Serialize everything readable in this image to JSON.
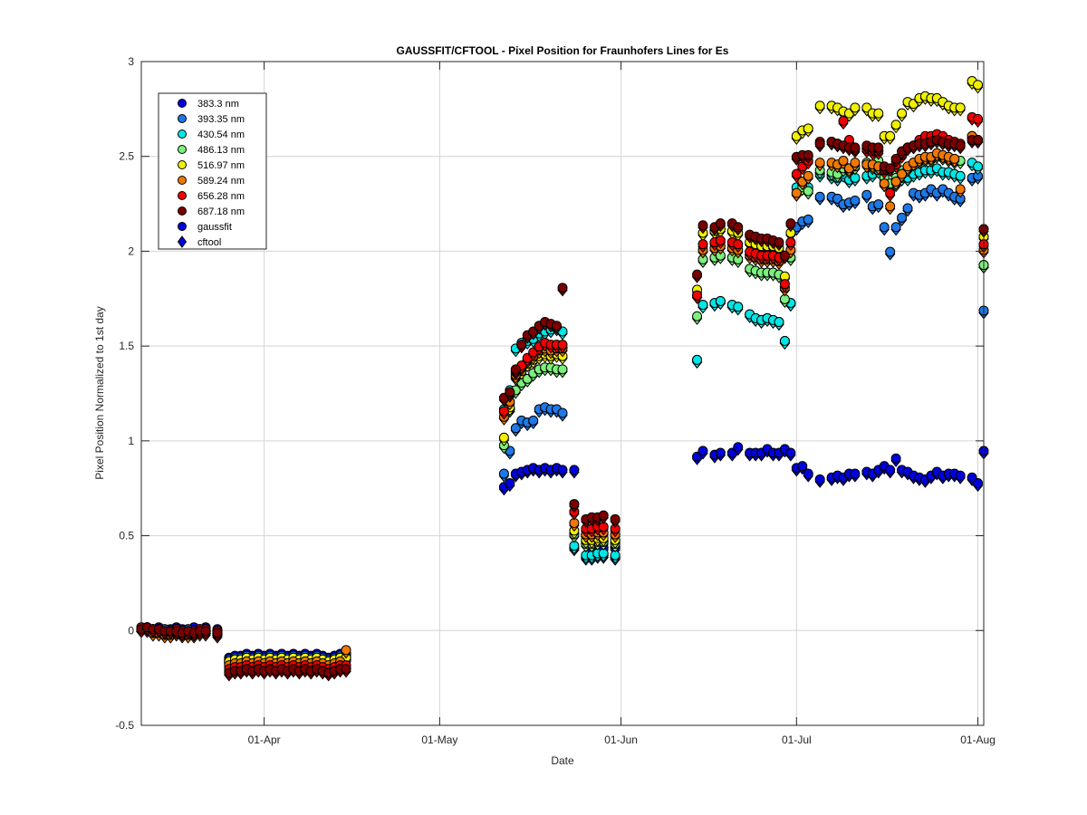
{
  "chart_data": {
    "type": "scatter",
    "title": "GAUSSFIT/CFTOOL - Pixel Position for Fraunhofers Lines for Es",
    "xlabel": "Date",
    "ylabel": "Pixel Position Normalized to 1st day",
    "xlim": [
      "2015-03-11",
      "2015-08-02"
    ],
    "ylim": [
      -0.5,
      3
    ],
    "grid": true,
    "legend_position": "top-left",
    "x_ticks": [
      {
        "date": "2015-04-01",
        "label": "01-Apr"
      },
      {
        "date": "2015-05-01",
        "label": "01-May"
      },
      {
        "date": "2015-06-01",
        "label": "01-Jun"
      },
      {
        "date": "2015-07-01",
        "label": "01-Jul"
      },
      {
        "date": "2015-08-01",
        "label": "01-Aug"
      }
    ],
    "y_ticks": [
      {
        "value": -0.5,
        "label": "-0.5"
      },
      {
        "value": 0,
        "label": "0"
      },
      {
        "value": 0.5,
        "label": "0.5"
      },
      {
        "value": 1,
        "label": "1"
      },
      {
        "value": 1.5,
        "label": "1.5"
      },
      {
        "value": 2,
        "label": "2"
      },
      {
        "value": 2.5,
        "label": "2.5"
      },
      {
        "value": 3,
        "label": "3"
      }
    ],
    "marker_legend": [
      {
        "name": "gaussfit",
        "marker": "circle",
        "color": "#0000dd"
      },
      {
        "name": "cftool",
        "marker": "diamond",
        "color": "#0000dd"
      }
    ],
    "x": [
      "2015-03-11",
      "2015-03-12",
      "2015-03-13",
      "2015-03-14",
      "2015-03-15",
      "2015-03-16",
      "2015-03-17",
      "2015-03-18",
      "2015-03-19",
      "2015-03-20",
      "2015-03-21",
      "2015-03-22",
      "2015-03-24",
      "2015-03-26",
      "2015-03-27",
      "2015-03-28",
      "2015-03-29",
      "2015-03-30",
      "2015-03-31",
      "2015-04-01",
      "2015-04-02",
      "2015-04-03",
      "2015-04-04",
      "2015-04-05",
      "2015-04-06",
      "2015-04-07",
      "2015-04-08",
      "2015-04-09",
      "2015-04-10",
      "2015-04-11",
      "2015-04-12",
      "2015-04-13",
      "2015-04-14",
      "2015-04-15",
      "2015-05-12",
      "2015-05-13",
      "2015-05-14",
      "2015-05-15",
      "2015-05-16",
      "2015-05-17",
      "2015-05-18",
      "2015-05-19",
      "2015-05-20",
      "2015-05-21",
      "2015-05-22",
      "2015-05-24",
      "2015-05-26",
      "2015-05-27",
      "2015-05-28",
      "2015-05-29",
      "2015-05-31",
      "2015-06-14",
      "2015-06-15",
      "2015-06-17",
      "2015-06-18",
      "2015-06-20",
      "2015-06-21",
      "2015-06-23",
      "2015-06-24",
      "2015-06-25",
      "2015-06-26",
      "2015-06-27",
      "2015-06-28",
      "2015-06-29",
      "2015-06-30",
      "2015-07-01",
      "2015-07-02",
      "2015-07-03",
      "2015-07-05",
      "2015-07-07",
      "2015-07-08",
      "2015-07-09",
      "2015-07-10",
      "2015-07-11",
      "2015-07-13",
      "2015-07-14",
      "2015-07-15",
      "2015-07-16",
      "2015-07-17",
      "2015-07-18",
      "2015-07-19",
      "2015-07-20",
      "2015-07-21",
      "2015-07-22",
      "2015-07-23",
      "2015-07-24",
      "2015-07-25",
      "2015-07-26",
      "2015-07-27",
      "2015-07-28",
      "2015-07-29",
      "2015-07-31",
      "2015-08-01",
      "2015-08-02"
    ],
    "series": [
      {
        "name": "383.3 nm",
        "color": "#0000dd",
        "values": [
          0.0,
          0.01,
          0.0,
          0.01,
          0.0,
          0.0,
          0.01,
          0.0,
          0.0,
          0.01,
          0.0,
          0.01,
          0.0,
          -0.15,
          -0.14,
          -0.14,
          -0.13,
          -0.14,
          -0.13,
          -0.14,
          -0.13,
          -0.14,
          -0.13,
          -0.14,
          -0.13,
          -0.14,
          -0.13,
          -0.14,
          -0.13,
          -0.14,
          -0.15,
          -0.14,
          -0.13,
          -0.13,
          0.75,
          0.77,
          0.82,
          0.83,
          0.84,
          0.85,
          0.84,
          0.85,
          0.84,
          0.85,
          0.84,
          0.84,
          0.5,
          0.42,
          0.42,
          0.43,
          0.43,
          0.91,
          0.94,
          0.92,
          0.93,
          0.93,
          0.96,
          0.93,
          0.93,
          0.93,
          0.95,
          0.93,
          0.93,
          0.95,
          0.93,
          0.85,
          0.86,
          0.82,
          0.79,
          0.8,
          0.81,
          0.8,
          0.82,
          0.82,
          0.83,
          0.82,
          0.84,
          0.86,
          0.84,
          0.9,
          0.84,
          0.83,
          0.81,
          0.8,
          0.79,
          0.81,
          0.83,
          0.81,
          0.82,
          0.82,
          0.81,
          0.8,
          0.77,
          0.94
        ]
      },
      {
        "name": "393.35 nm",
        "color": "#1e78e6",
        "values": [
          0.0,
          0.01,
          0.0,
          0.0,
          0.0,
          -0.01,
          0.0,
          -0.01,
          0.0,
          -0.01,
          0.0,
          0.0,
          -0.01,
          -0.16,
          -0.15,
          -0.15,
          -0.14,
          -0.15,
          -0.14,
          -0.15,
          -0.14,
          -0.15,
          -0.14,
          -0.15,
          -0.14,
          -0.15,
          -0.14,
          -0.15,
          -0.14,
          -0.15,
          -0.16,
          -0.15,
          -0.14,
          -0.14,
          0.82,
          0.94,
          1.06,
          1.1,
          1.09,
          1.1,
          1.16,
          1.17,
          1.16,
          1.16,
          1.14,
          0.43,
          0.38,
          0.38,
          0.39,
          0.39,
          0.38,
          1.42,
          1.71,
          1.72,
          1.73,
          1.71,
          1.7,
          1.66,
          1.64,
          1.63,
          1.64,
          1.63,
          1.62,
          1.52,
          1.72,
          2.12,
          2.15,
          2.16,
          2.28,
          2.28,
          2.27,
          2.24,
          2.25,
          2.26,
          2.29,
          2.23,
          2.24,
          2.12,
          1.99,
          2.12,
          2.17,
          2.22,
          2.3,
          2.29,
          2.3,
          2.32,
          2.3,
          2.32,
          2.3,
          2.28,
          2.27,
          2.38,
          2.39,
          1.68
        ]
      },
      {
        "name": "430.54 nm",
        "color": "#00e6e6",
        "values": [
          0.0,
          0.0,
          -0.01,
          0.0,
          -0.01,
          -0.02,
          -0.01,
          -0.02,
          -0.01,
          -0.02,
          -0.01,
          -0.01,
          -0.02,
          -0.17,
          -0.16,
          -0.16,
          -0.15,
          -0.16,
          -0.15,
          -0.16,
          -0.15,
          -0.16,
          -0.15,
          -0.16,
          -0.15,
          -0.16,
          -0.15,
          -0.16,
          -0.15,
          -0.16,
          -0.17,
          -0.16,
          -0.15,
          -0.15,
          1.16,
          1.26,
          1.48,
          1.51,
          1.52,
          1.53,
          1.56,
          1.57,
          1.58,
          1.59,
          1.57,
          0.44,
          0.39,
          0.39,
          0.4,
          0.4,
          0.39,
          1.42,
          1.71,
          1.72,
          1.73,
          1.71,
          1.7,
          1.66,
          1.64,
          1.63,
          1.64,
          1.63,
          1.62,
          1.52,
          1.72,
          2.33,
          2.35,
          2.33,
          2.4,
          2.39,
          2.38,
          2.4,
          2.37,
          2.38,
          2.39,
          2.4,
          2.42,
          2.35,
          2.33,
          2.35,
          2.38,
          2.38,
          2.4,
          2.41,
          2.42,
          2.42,
          2.43,
          2.41,
          2.41,
          2.4,
          2.39,
          2.46,
          2.44,
          1.92
        ]
      },
      {
        "name": "486.13 nm",
        "color": "#7cf07c",
        "values": [
          0.0,
          0.0,
          -0.01,
          -0.01,
          -0.02,
          -0.02,
          -0.01,
          -0.02,
          -0.02,
          -0.02,
          -0.01,
          -0.01,
          -0.02,
          -0.18,
          -0.17,
          -0.17,
          -0.16,
          -0.17,
          -0.16,
          -0.17,
          -0.16,
          -0.17,
          -0.16,
          -0.17,
          -0.16,
          -0.17,
          -0.16,
          -0.17,
          -0.16,
          -0.17,
          -0.18,
          -0.17,
          -0.16,
          -0.16,
          0.97,
          1.16,
          1.26,
          1.3,
          1.32,
          1.35,
          1.37,
          1.38,
          1.38,
          1.37,
          1.37,
          0.5,
          0.45,
          0.45,
          0.46,
          0.46,
          0.45,
          1.65,
          1.95,
          1.96,
          1.97,
          1.96,
          1.95,
          1.9,
          1.89,
          1.88,
          1.88,
          1.88,
          1.87,
          1.74,
          1.96,
          2.3,
          2.33,
          2.31,
          2.42,
          2.41,
          2.4,
          2.43,
          2.42,
          2.44,
          2.46,
          2.44,
          2.47,
          2.38,
          2.35,
          2.38,
          2.42,
          2.43,
          2.46,
          2.47,
          2.48,
          2.48,
          2.5,
          2.49,
          2.48,
          2.47,
          2.47,
          2.6,
          2.58,
          1.92
        ]
      },
      {
        "name": "516.97 nm",
        "color": "#f0f000",
        "values": [
          0.01,
          0.01,
          0.0,
          0.0,
          -0.01,
          -0.01,
          0.0,
          -0.01,
          -0.01,
          -0.01,
          0.0,
          0.0,
          -0.01,
          -0.17,
          -0.16,
          -0.16,
          -0.15,
          -0.16,
          -0.15,
          -0.16,
          -0.15,
          -0.16,
          -0.15,
          -0.16,
          -0.15,
          -0.16,
          -0.15,
          -0.16,
          -0.15,
          -0.16,
          -0.17,
          -0.16,
          -0.15,
          -0.15,
          1.01,
          1.17,
          1.33,
          1.36,
          1.4,
          1.42,
          1.44,
          1.45,
          1.44,
          1.45,
          1.44,
          0.52,
          0.47,
          0.47,
          0.48,
          0.48,
          0.47,
          1.79,
          2.09,
          2.1,
          2.11,
          2.1,
          2.09,
          2.04,
          2.03,
          2.02,
          2.02,
          2.02,
          2.01,
          1.86,
          2.09,
          2.6,
          2.63,
          2.64,
          2.76,
          2.76,
          2.75,
          2.73,
          2.72,
          2.75,
          2.75,
          2.72,
          2.72,
          2.6,
          2.6,
          2.66,
          2.72,
          2.78,
          2.77,
          2.8,
          2.81,
          2.8,
          2.8,
          2.78,
          2.76,
          2.75,
          2.75,
          2.89,
          2.87,
          2.07
        ]
      },
      {
        "name": "589.24 nm",
        "color": "#f07800",
        "values": [
          0.0,
          0.0,
          -0.02,
          -0.02,
          -0.03,
          -0.03,
          -0.02,
          -0.03,
          -0.03,
          -0.03,
          -0.02,
          -0.02,
          -0.03,
          -0.19,
          -0.18,
          -0.18,
          -0.17,
          -0.18,
          -0.17,
          -0.18,
          -0.17,
          -0.18,
          -0.17,
          -0.18,
          -0.17,
          -0.18,
          -0.17,
          -0.18,
          -0.17,
          -0.18,
          -0.19,
          -0.18,
          -0.17,
          -0.11,
          1.12,
          1.2,
          1.34,
          1.38,
          1.42,
          1.44,
          1.47,
          1.48,
          1.47,
          1.48,
          1.48,
          0.56,
          0.5,
          0.5,
          0.51,
          0.51,
          0.5,
          1.76,
          2.0,
          2.01,
          2.02,
          2.01,
          2.0,
          1.97,
          1.96,
          1.95,
          1.95,
          1.95,
          1.94,
          1.8,
          2.0,
          2.3,
          2.36,
          2.39,
          2.46,
          2.46,
          2.45,
          2.47,
          2.43,
          2.46,
          2.45,
          2.45,
          2.44,
          2.35,
          2.23,
          2.36,
          2.4,
          2.44,
          2.46,
          2.48,
          2.49,
          2.49,
          2.51,
          2.5,
          2.49,
          2.48,
          2.32,
          2.6,
          2.58,
          2.0
        ]
      },
      {
        "name": "656.28 nm",
        "color": "#f00000",
        "values": [
          0.01,
          0.01,
          0.0,
          0.0,
          -0.01,
          -0.01,
          0.0,
          -0.01,
          -0.01,
          -0.01,
          0.0,
          0.0,
          -0.01,
          -0.21,
          -0.2,
          -0.2,
          -0.19,
          -0.2,
          -0.19,
          -0.2,
          -0.19,
          -0.2,
          -0.19,
          -0.2,
          -0.19,
          -0.2,
          -0.19,
          -0.2,
          -0.19,
          -0.2,
          -0.21,
          -0.2,
          -0.19,
          -0.19,
          1.15,
          1.24,
          1.36,
          1.39,
          1.43,
          1.46,
          1.49,
          1.51,
          1.5,
          1.5,
          1.5,
          0.62,
          0.53,
          0.53,
          0.54,
          0.54,
          0.53,
          1.76,
          2.03,
          2.04,
          2.05,
          2.04,
          2.03,
          1.99,
          1.98,
          1.97,
          1.97,
          1.97,
          1.96,
          1.82,
          2.04,
          2.4,
          2.44,
          2.47,
          2.57,
          2.57,
          2.56,
          2.68,
          2.58,
          2.53,
          2.53,
          2.52,
          2.52,
          2.42,
          2.3,
          2.45,
          2.5,
          2.54,
          2.55,
          2.58,
          2.6,
          2.6,
          2.61,
          2.6,
          2.58,
          2.57,
          2.56,
          2.7,
          2.69,
          2.03
        ]
      },
      {
        "name": "687.18 nm",
        "color": "#7a0000",
        "values": [
          0.0,
          0.01,
          0.0,
          0.0,
          -0.01,
          -0.01,
          -0.01,
          -0.02,
          -0.01,
          -0.02,
          -0.01,
          -0.01,
          -0.02,
          -0.23,
          -0.22,
          -0.22,
          -0.21,
          -0.22,
          -0.21,
          -0.22,
          -0.21,
          -0.22,
          -0.21,
          -0.22,
          -0.21,
          -0.22,
          -0.21,
          -0.22,
          -0.21,
          -0.22,
          -0.23,
          -0.22,
          -0.21,
          -0.21,
          1.22,
          1.25,
          1.37,
          1.5,
          1.55,
          1.57,
          1.6,
          1.62,
          1.61,
          1.6,
          1.8,
          0.66,
          0.58,
          0.59,
          0.59,
          0.6,
          0.58,
          1.87,
          2.13,
          2.12,
          2.14,
          2.14,
          2.12,
          2.08,
          2.07,
          2.06,
          2.06,
          2.05,
          2.04,
          1.97,
          2.14,
          2.49,
          2.5,
          2.5,
          2.56,
          2.57,
          2.56,
          2.55,
          2.54,
          2.54,
          2.55,
          2.54,
          2.54,
          2.44,
          2.43,
          2.48,
          2.52,
          2.54,
          2.55,
          2.56,
          2.56,
          2.57,
          2.58,
          2.57,
          2.56,
          2.56,
          2.55,
          2.58,
          2.58,
          2.11
        ]
      }
    ]
  }
}
